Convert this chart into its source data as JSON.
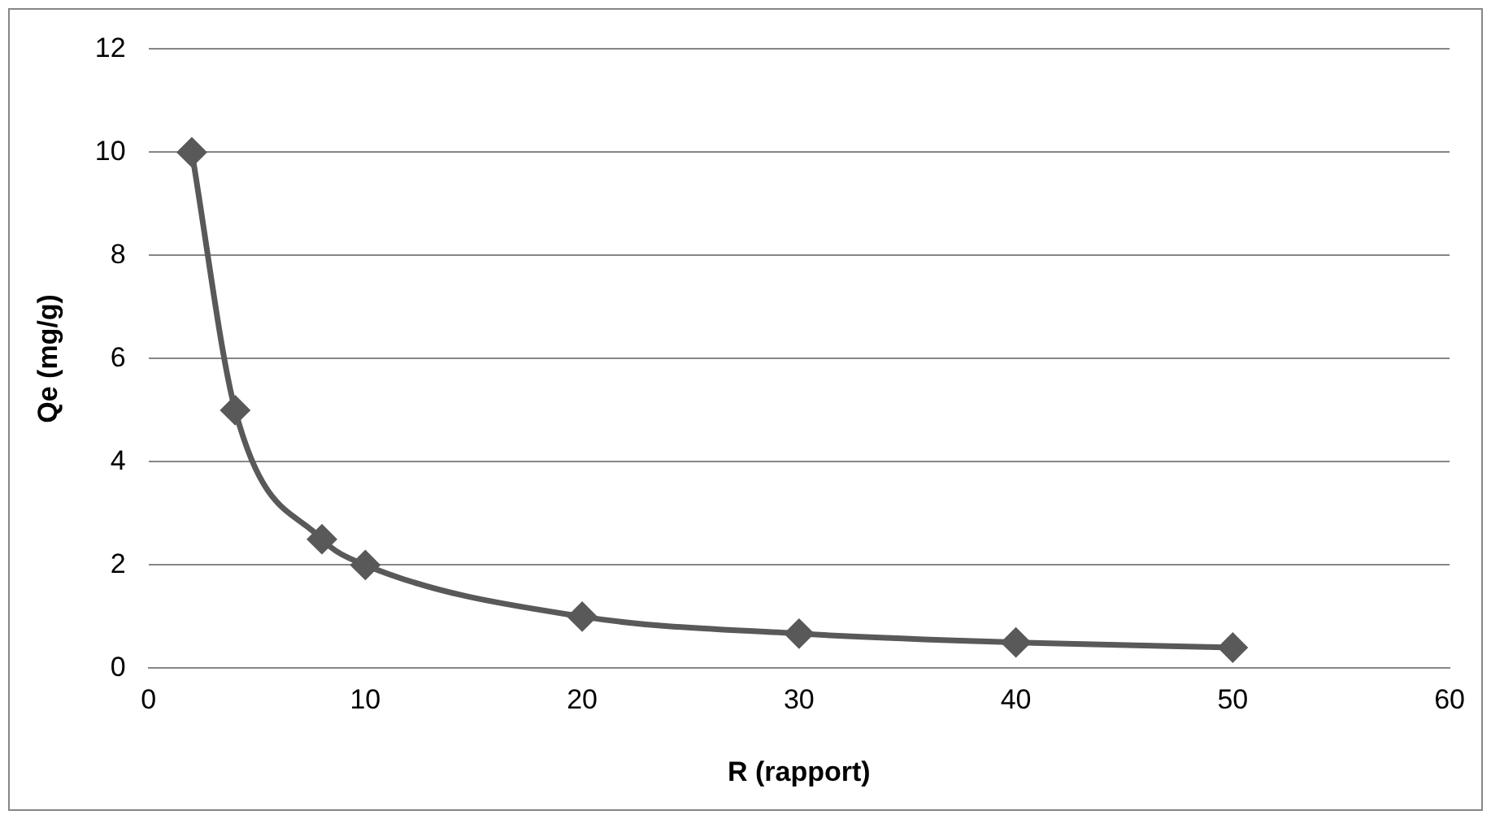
{
  "chart_data": {
    "type": "line",
    "xlabel": "R (rapport)",
    "ylabel": "Qe (mg/g)",
    "x": [
      2,
      4,
      8,
      10,
      20,
      30,
      40,
      50
    ],
    "series": [
      {
        "color": "#595959",
        "values": [
          10,
          5,
          2.5,
          2,
          1,
          0.67,
          0.5,
          0.4
        ]
      }
    ],
    "xlim": [
      0,
      60
    ],
    "xticks": [
      0,
      10,
      20,
      30,
      40,
      50,
      60
    ],
    "ylim": [
      0,
      12
    ],
    "yticks": [
      0,
      2,
      4,
      6,
      8,
      10,
      12
    ],
    "grid": "y",
    "legend": false,
    "marker": "diamond",
    "line_style": "solid"
  }
}
